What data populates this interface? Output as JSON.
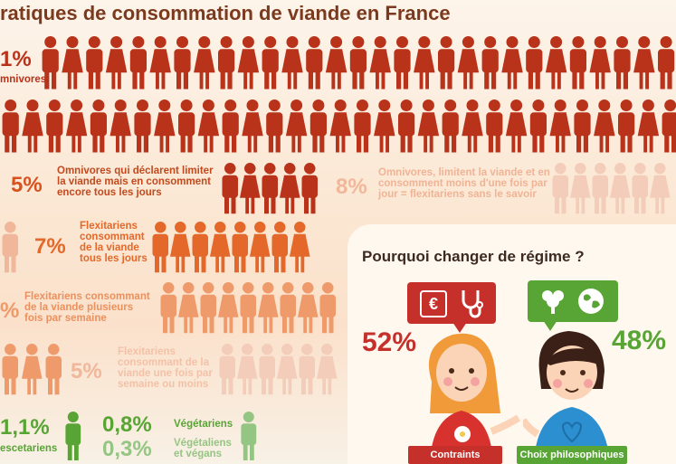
{
  "title": "ratiques de consommation de viande en France",
  "colors": {
    "red": "#b8331a",
    "orange": "#e3682a",
    "light_orange": "#ef9a6a",
    "pale": "#f1b79a",
    "very_pale": "#f3cdb9",
    "green": "#58a535",
    "green_light": "#95c583"
  },
  "groups": [
    {
      "id": "omnivores",
      "pct": "1%",
      "label": "mnivores"
    },
    {
      "id": "limit_daily",
      "pct": "5%",
      "label": "Omnivores qui déclarent limiter\nla viande mais en consomment\nencore tous les jours"
    },
    {
      "id": "flexi_unaware",
      "pct": "8%",
      "label": "Omnivores, limitent la viande et en\nconsomment moins d'une fois par\njour = flexitariens sans le savoir"
    },
    {
      "id": "flexi_daily",
      "pct": "7%",
      "label": "Flexitariens\nconsommant\nde la viande\ntous les jours"
    },
    {
      "id": "flexi_weekly",
      "pct": "%",
      "label": "Flexitariens consommant\nde la viande plusieurs\nfois par semaine"
    },
    {
      "id": "flexi_rare",
      "pct": "5%",
      "label": "Flexitariens\nconsommant de la\nviande une fois par\nsemaine ou moins"
    },
    {
      "id": "pescetarians",
      "pct": "1,1%",
      "label": "escetariens"
    },
    {
      "id": "vegetarians",
      "pct": "0,8%",
      "label": "Végétariens"
    },
    {
      "id": "vegans",
      "pct": "0,3%",
      "label": "Végétaliens\net végans"
    }
  ],
  "why": {
    "title": "Pourquoi changer de régime ?",
    "left_pct": "52%",
    "right_pct": "48%",
    "left_label": "Contraints",
    "right_label": "Choix philosophiques",
    "left_icons": [
      "euro-icon",
      "stethoscope-icon"
    ],
    "right_icons": [
      "tree-icon",
      "globe-icon"
    ]
  }
}
